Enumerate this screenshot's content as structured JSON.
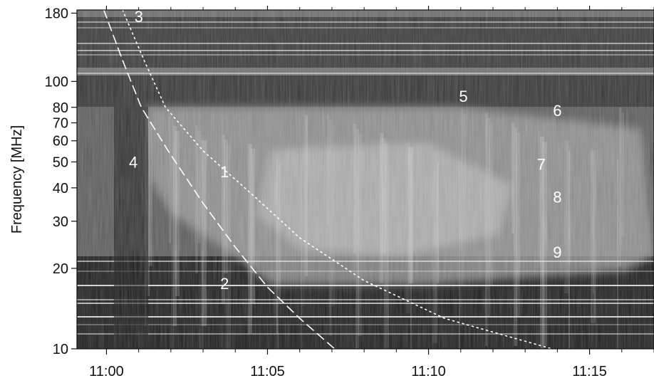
{
  "chart_data": {
    "type": "heatmap",
    "title": "",
    "ylabel": "Frequency [MHz]",
    "xlabel": "",
    "y_scale": "log",
    "xlim": [
      "10:59:05",
      "11:17:00"
    ],
    "ylim": [
      10,
      185
    ],
    "x_ticks": [
      "11:00",
      "11:05",
      "11:10",
      "11:15"
    ],
    "y_ticks": [
      "10",
      "20",
      "30",
      "40",
      "50",
      "60",
      "70",
      "80",
      "100",
      "180"
    ],
    "colormap": "grayscale",
    "curves": [
      {
        "style": "dashed",
        "color": "#ffffff",
        "points": [
          [
            "10:59:55",
            185
          ],
          [
            "11:00:30",
            120
          ],
          [
            "11:01:05",
            80
          ],
          [
            "11:01:55",
            55
          ],
          [
            "11:03:00",
            35
          ],
          [
            "11:04:00",
            24
          ],
          [
            "11:05:00",
            17
          ],
          [
            "11:06:00",
            13
          ],
          [
            "11:07:05",
            10
          ]
        ]
      },
      {
        "style": "dotted",
        "color": "#ffffff",
        "points": [
          [
            "11:00:30",
            185
          ],
          [
            "11:01:10",
            120
          ],
          [
            "11:01:50",
            80
          ],
          [
            "11:03:00",
            55
          ],
          [
            "11:04:30",
            38
          ],
          [
            "11:06:00",
            26
          ],
          [
            "11:08:00",
            18
          ],
          [
            "11:10:30",
            13
          ],
          [
            "11:13:50",
            10
          ]
        ]
      }
    ],
    "annotations": [
      {
        "text": "1",
        "x": "11:03:40",
        "y": 46
      },
      {
        "text": "2",
        "x": "11:03:40",
        "y": 17.6
      },
      {
        "text": "3",
        "x": "11:01:00",
        "y": 175
      },
      {
        "text": "4",
        "x": "11:00:50",
        "y": 50
      },
      {
        "text": "5",
        "x": "11:11:05",
        "y": 88
      },
      {
        "text": "6",
        "x": "11:14:00",
        "y": 78
      },
      {
        "text": "7",
        "x": "11:13:30",
        "y": 49
      },
      {
        "text": "8",
        "x": "11:14:00",
        "y": 37
      },
      {
        "text": "9",
        "x": "11:14:00",
        "y": 23
      }
    ],
    "colors": {
      "curve": "#ffffff",
      "text": "#ffffff",
      "axis": "#111111"
    }
  }
}
